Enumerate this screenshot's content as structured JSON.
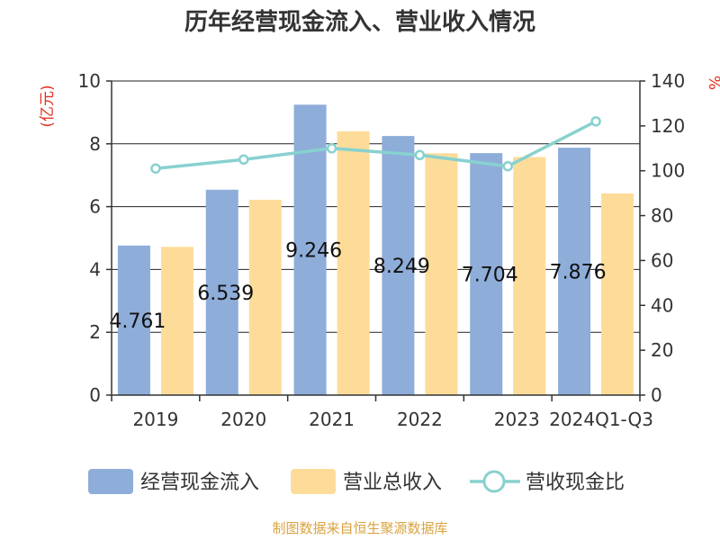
{
  "chart_data": {
    "type": "bar",
    "title": "历年经营现金流入、营业收入情况",
    "categories": [
      "2019",
      "2020",
      "2021",
      "2022",
      "2023",
      "2024Q1-Q3"
    ],
    "series": [
      {
        "name": "经营现金流入",
        "type": "bar",
        "axis": "left",
        "color": "#8eadd9",
        "values": [
          4.761,
          6.539,
          9.246,
          8.249,
          7.704,
          7.876
        ]
      },
      {
        "name": "营业总收入",
        "type": "bar",
        "axis": "left",
        "color": "#fddc9a",
        "values": [
          4.72,
          6.22,
          8.4,
          7.7,
          7.58,
          6.42
        ]
      },
      {
        "name": "营收现金比",
        "type": "line",
        "axis": "right",
        "color": "#88d1cf",
        "values": [
          101,
          105,
          110,
          107,
          102,
          122
        ]
      }
    ],
    "data_labels": [
      "4.761",
      "6.539",
      "9.246",
      "8.249",
      "7.704",
      "7.876"
    ],
    "y_left": {
      "unit": "(亿元)",
      "min": 0,
      "max": 10,
      "ticks": [
        0,
        2,
        4,
        6,
        8,
        10
      ]
    },
    "y_right": {
      "unit": "%",
      "min": 0,
      "max": 140,
      "ticks": [
        0,
        20,
        40,
        60,
        80,
        100,
        120,
        140
      ]
    },
    "grid": true,
    "legend": "bottom",
    "source": "制图数据来自恒生聚源数据库"
  }
}
